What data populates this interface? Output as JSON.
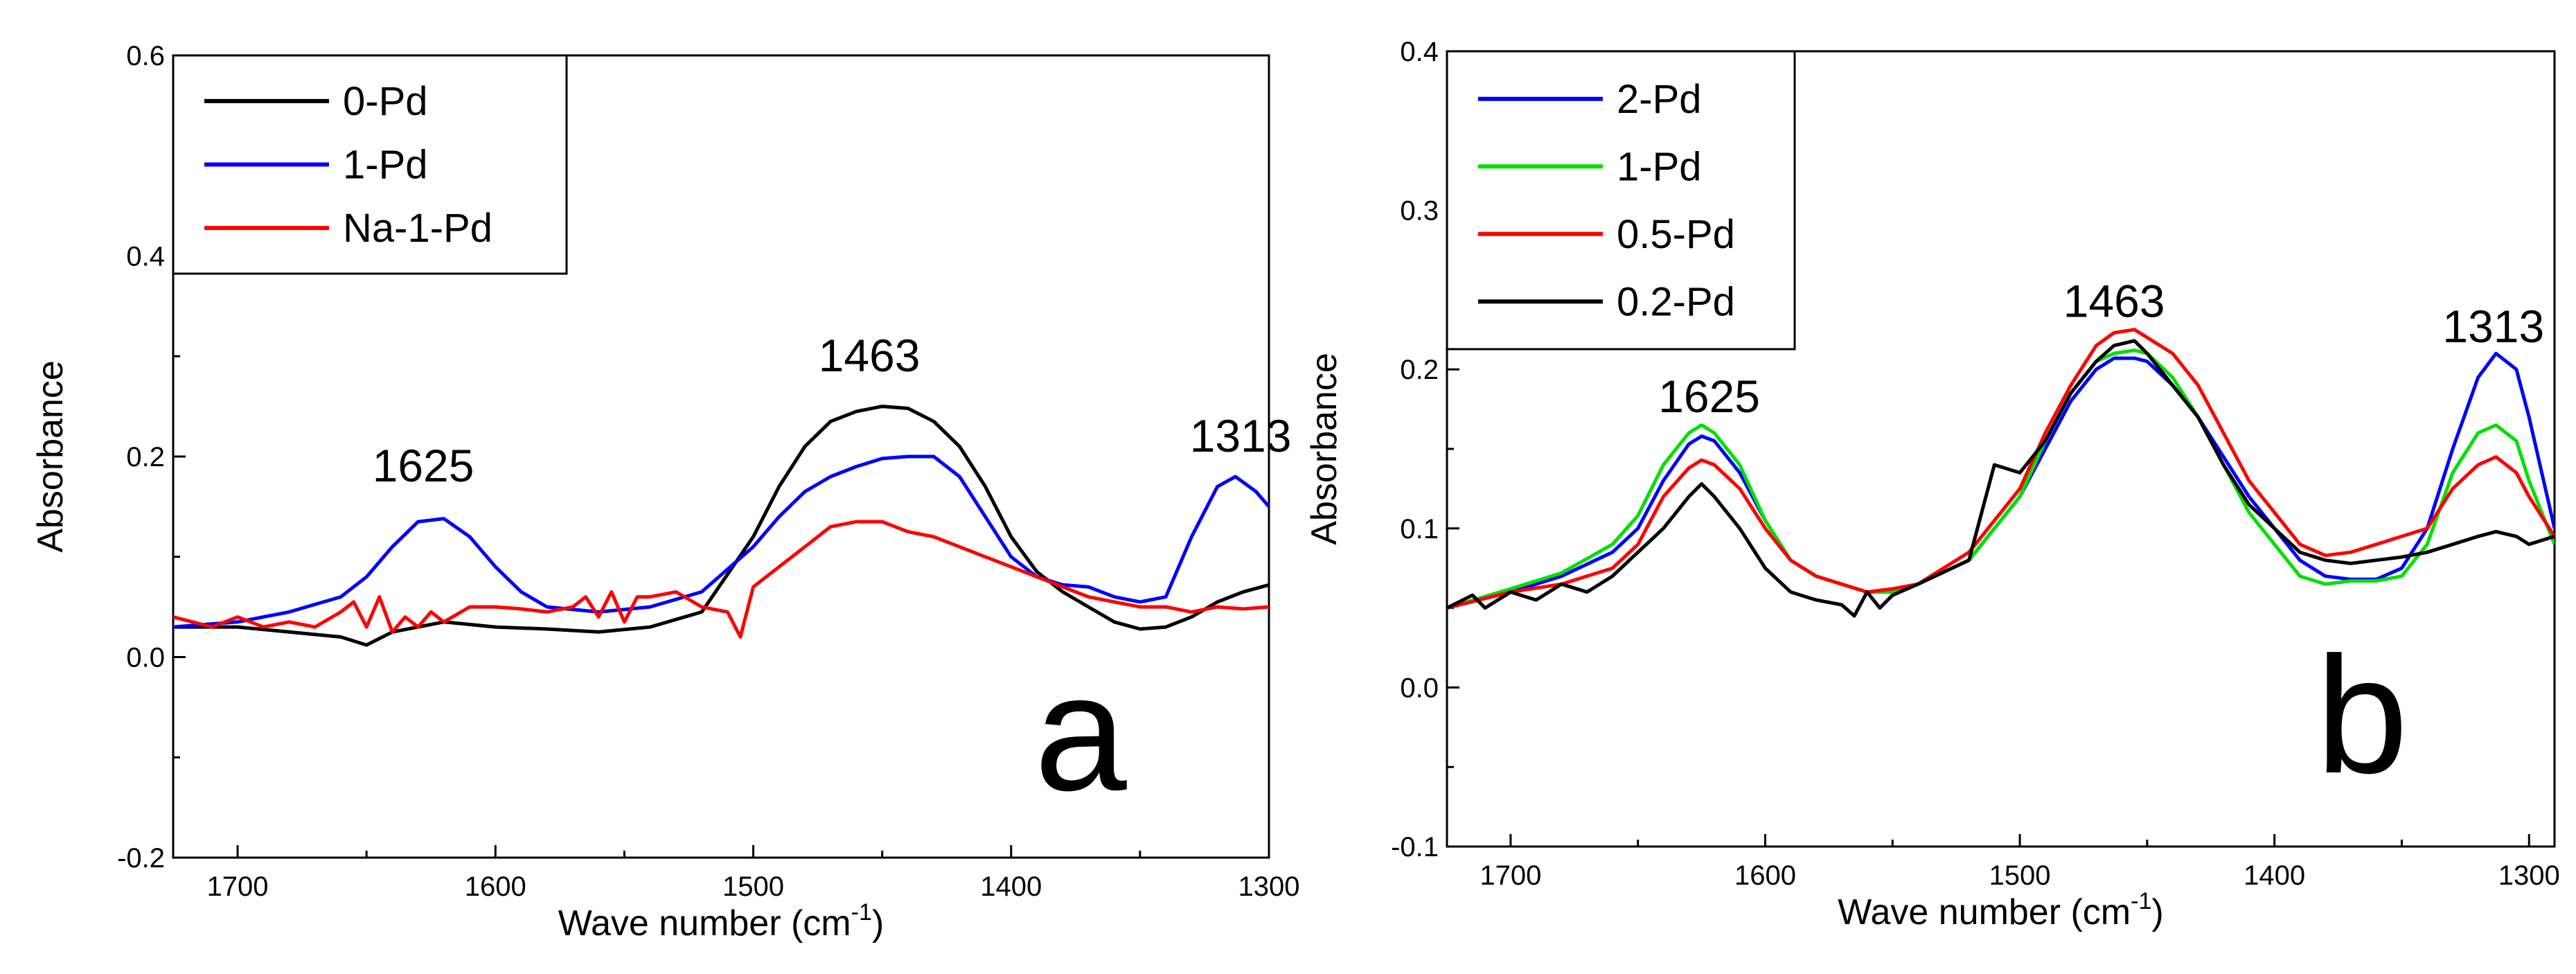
{
  "chart_data": [
    {
      "type": "line",
      "panel_label": "a",
      "xlabel": "Wave number (cm",
      "xlabel_sup": "-1",
      "xlabel_tail": ")",
      "ylabel": "Absorbance",
      "xlim": [
        1725,
        1300
      ],
      "ylim": [
        -0.2,
        0.6
      ],
      "x_ticks": [
        1700,
        1600,
        1500,
        1400,
        1300
      ],
      "x_tick_labels": [
        "1700",
        "1600",
        "1500",
        "1400",
        "1300"
      ],
      "y_ticks": [
        -0.2,
        0.0,
        0.2,
        0.4,
        0.6
      ],
      "y_tick_labels": [
        "-0.2",
        "0.0",
        "0.2",
        "0.4",
        "0.6"
      ],
      "legend_position": "top-left",
      "annotations": [
        {
          "text": "1625",
          "x": 1628,
          "y": 0.175
        },
        {
          "text": "1463",
          "x": 1455,
          "y": 0.285
        },
        {
          "text": "1313",
          "x": 1311,
          "y": 0.205
        }
      ],
      "series": [
        {
          "name": "0-Pd",
          "color": "#000000",
          "x": [
            1725,
            1700,
            1680,
            1660,
            1650,
            1640,
            1620,
            1600,
            1580,
            1560,
            1540,
            1520,
            1500,
            1490,
            1480,
            1470,
            1460,
            1450,
            1440,
            1430,
            1420,
            1410,
            1400,
            1390,
            1380,
            1370,
            1360,
            1350,
            1340,
            1330,
            1320,
            1310,
            1300
          ],
          "y": [
            0.03,
            0.03,
            0.025,
            0.02,
            0.012,
            0.025,
            0.035,
            0.03,
            0.028,
            0.025,
            0.03,
            0.045,
            0.12,
            0.17,
            0.21,
            0.235,
            0.245,
            0.25,
            0.248,
            0.235,
            0.21,
            0.17,
            0.12,
            0.085,
            0.065,
            0.05,
            0.035,
            0.028,
            0.03,
            0.04,
            0.055,
            0.065,
            0.072
          ]
        },
        {
          "name": "1-Pd",
          "color": "#0000ff",
          "x": [
            1725,
            1700,
            1680,
            1660,
            1650,
            1640,
            1630,
            1620,
            1610,
            1600,
            1590,
            1580,
            1560,
            1540,
            1520,
            1500,
            1490,
            1480,
            1470,
            1460,
            1450,
            1440,
            1430,
            1420,
            1410,
            1400,
            1390,
            1380,
            1370,
            1360,
            1350,
            1340,
            1330,
            1320,
            1313,
            1305,
            1300
          ],
          "y": [
            0.03,
            0.035,
            0.045,
            0.06,
            0.08,
            0.11,
            0.135,
            0.138,
            0.12,
            0.09,
            0.065,
            0.05,
            0.045,
            0.05,
            0.065,
            0.11,
            0.14,
            0.165,
            0.18,
            0.19,
            0.198,
            0.2,
            0.2,
            0.18,
            0.14,
            0.1,
            0.08,
            0.072,
            0.07,
            0.06,
            0.055,
            0.06,
            0.12,
            0.17,
            0.18,
            0.165,
            0.15
          ]
        },
        {
          "name": "Na-1-Pd",
          "color": "#ff0000",
          "x": [
            1725,
            1710,
            1700,
            1690,
            1680,
            1670,
            1660,
            1655,
            1650,
            1645,
            1640,
            1635,
            1630,
            1625,
            1620,
            1610,
            1600,
            1590,
            1580,
            1570,
            1565,
            1560,
            1555,
            1550,
            1545,
            1540,
            1530,
            1520,
            1510,
            1505,
            1500,
            1490,
            1480,
            1470,
            1460,
            1450,
            1440,
            1430,
            1420,
            1410,
            1400,
            1390,
            1380,
            1370,
            1360,
            1350,
            1340,
            1330,
            1320,
            1310,
            1300
          ],
          "y": [
            0.04,
            0.03,
            0.04,
            0.03,
            0.035,
            0.03,
            0.045,
            0.055,
            0.03,
            0.06,
            0.025,
            0.04,
            0.03,
            0.045,
            0.035,
            0.05,
            0.05,
            0.048,
            0.045,
            0.05,
            0.06,
            0.04,
            0.065,
            0.035,
            0.06,
            0.06,
            0.065,
            0.05,
            0.045,
            0.02,
            0.07,
            0.09,
            0.11,
            0.13,
            0.135,
            0.135,
            0.125,
            0.12,
            0.11,
            0.1,
            0.09,
            0.08,
            0.07,
            0.06,
            0.055,
            0.05,
            0.05,
            0.045,
            0.05,
            0.048,
            0.05
          ]
        }
      ]
    },
    {
      "type": "line",
      "panel_label": "b",
      "xlabel": "Wave number (cm",
      "xlabel_sup": "-1",
      "xlabel_tail": ")",
      "ylabel": "Absorbance",
      "xlim": [
        1725,
        1290
      ],
      "ylim": [
        -0.1,
        0.4
      ],
      "x_ticks": [
        1700,
        1600,
        1500,
        1400,
        1300
      ],
      "x_tick_labels": [
        "1700",
        "1600",
        "1500",
        "1400",
        "1300"
      ],
      "y_ticks": [
        -0.1,
        0.0,
        0.1,
        0.2,
        0.3,
        0.4
      ],
      "y_tick_labels": [
        "-0.1",
        "0.0",
        "0.1",
        "0.2",
        "0.3",
        "0.4"
      ],
      "legend_position": "top-left",
      "annotations": [
        {
          "text": "1625",
          "x": 1622,
          "y": 0.173
        },
        {
          "text": "1463",
          "x": 1463,
          "y": 0.233
        },
        {
          "text": "1313",
          "x": 1314,
          "y": 0.217
        }
      ],
      "series": [
        {
          "name": "2-Pd",
          "color": "#0000ff",
          "x": [
            1725,
            1700,
            1680,
            1660,
            1650,
            1640,
            1630,
            1625,
            1620,
            1610,
            1600,
            1590,
            1580,
            1570,
            1560,
            1550,
            1540,
            1520,
            1500,
            1490,
            1480,
            1470,
            1463,
            1455,
            1450,
            1440,
            1430,
            1420,
            1410,
            1400,
            1390,
            1380,
            1370,
            1360,
            1350,
            1340,
            1330,
            1320,
            1313,
            1305,
            1300,
            1290
          ],
          "y": [
            0.05,
            0.06,
            0.07,
            0.085,
            0.1,
            0.13,
            0.153,
            0.158,
            0.155,
            0.135,
            0.105,
            0.08,
            0.07,
            0.065,
            0.06,
            0.06,
            0.065,
            0.08,
            0.12,
            0.15,
            0.18,
            0.2,
            0.207,
            0.207,
            0.205,
            0.19,
            0.17,
            0.145,
            0.12,
            0.1,
            0.08,
            0.07,
            0.068,
            0.068,
            0.075,
            0.1,
            0.15,
            0.195,
            0.21,
            0.2,
            0.17,
            0.1
          ]
        },
        {
          "name": "1-Pd",
          "color": "#00e000",
          "x": [
            1725,
            1700,
            1680,
            1660,
            1650,
            1640,
            1630,
            1625,
            1620,
            1610,
            1600,
            1590,
            1580,
            1570,
            1560,
            1550,
            1540,
            1520,
            1500,
            1490,
            1480,
            1470,
            1463,
            1455,
            1450,
            1440,
            1430,
            1420,
            1410,
            1400,
            1390,
            1380,
            1370,
            1360,
            1350,
            1340,
            1330,
            1320,
            1313,
            1305,
            1300,
            1290
          ],
          "y": [
            0.05,
            0.062,
            0.072,
            0.09,
            0.108,
            0.14,
            0.16,
            0.165,
            0.16,
            0.14,
            0.105,
            0.08,
            0.07,
            0.065,
            0.06,
            0.06,
            0.065,
            0.08,
            0.12,
            0.155,
            0.185,
            0.205,
            0.21,
            0.212,
            0.21,
            0.195,
            0.17,
            0.14,
            0.11,
            0.09,
            0.07,
            0.065,
            0.067,
            0.067,
            0.07,
            0.09,
            0.135,
            0.16,
            0.165,
            0.155,
            0.13,
            0.09
          ]
        },
        {
          "name": "0.5-Pd",
          "color": "#ff0000",
          "x": [
            1725,
            1700,
            1680,
            1660,
            1650,
            1640,
            1630,
            1625,
            1620,
            1610,
            1600,
            1590,
            1580,
            1570,
            1560,
            1550,
            1540,
            1520,
            1500,
            1490,
            1480,
            1470,
            1463,
            1455,
            1450,
            1440,
            1430,
            1420,
            1410,
            1400,
            1390,
            1380,
            1370,
            1360,
            1350,
            1340,
            1330,
            1320,
            1313,
            1305,
            1300,
            1290
          ],
          "y": [
            0.05,
            0.06,
            0.065,
            0.075,
            0.09,
            0.12,
            0.138,
            0.143,
            0.14,
            0.125,
            0.1,
            0.08,
            0.07,
            0.065,
            0.06,
            0.062,
            0.065,
            0.085,
            0.125,
            0.16,
            0.19,
            0.215,
            0.223,
            0.225,
            0.22,
            0.21,
            0.19,
            0.16,
            0.13,
            0.11,
            0.09,
            0.083,
            0.085,
            0.09,
            0.095,
            0.1,
            0.125,
            0.14,
            0.145,
            0.135,
            0.12,
            0.095
          ]
        },
        {
          "name": "0.2-Pd",
          "color": "#000000",
          "x": [
            1725,
            1715,
            1710,
            1700,
            1690,
            1680,
            1670,
            1660,
            1650,
            1640,
            1630,
            1625,
            1620,
            1610,
            1600,
            1590,
            1580,
            1570,
            1565,
            1560,
            1555,
            1550,
            1540,
            1520,
            1510,
            1500,
            1490,
            1480,
            1470,
            1463,
            1455,
            1450,
            1440,
            1430,
            1420,
            1410,
            1400,
            1390,
            1380,
            1370,
            1360,
            1350,
            1340,
            1330,
            1320,
            1313,
            1305,
            1300,
            1290
          ],
          "y": [
            0.05,
            0.058,
            0.05,
            0.06,
            0.055,
            0.065,
            0.06,
            0.07,
            0.085,
            0.1,
            0.12,
            0.128,
            0.12,
            0.1,
            0.075,
            0.06,
            0.055,
            0.052,
            0.045,
            0.06,
            0.05,
            0.058,
            0.065,
            0.08,
            0.14,
            0.135,
            0.155,
            0.185,
            0.205,
            0.215,
            0.218,
            0.21,
            0.19,
            0.17,
            0.14,
            0.115,
            0.1,
            0.085,
            0.08,
            0.078,
            0.08,
            0.082,
            0.085,
            0.09,
            0.095,
            0.098,
            0.095,
            0.09,
            0.095
          ]
        }
      ]
    }
  ]
}
